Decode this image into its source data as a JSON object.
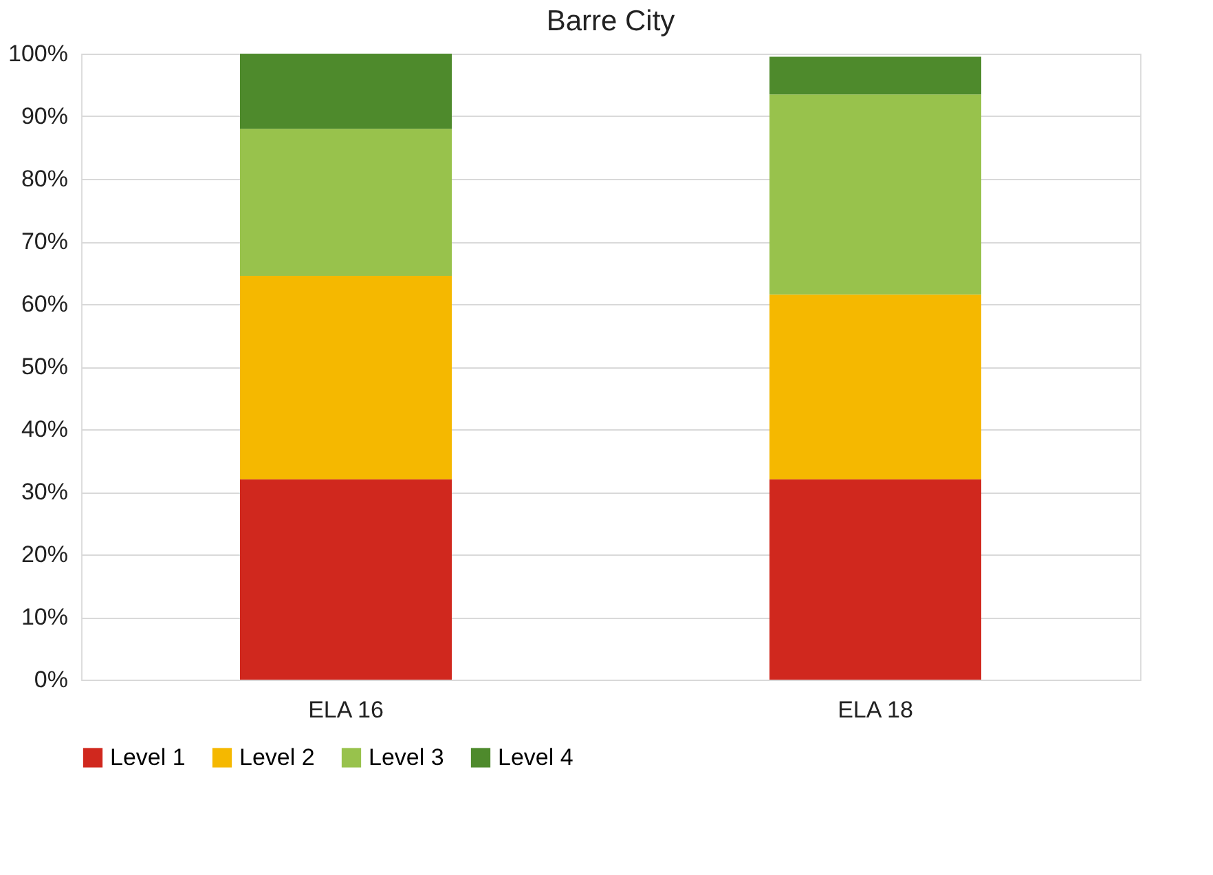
{
  "chart_data": {
    "type": "bar",
    "title": "Barre City",
    "stacked": true,
    "categories": [
      "ELA 16",
      "ELA 18"
    ],
    "series": [
      {
        "name": "Level 1",
        "color": "#d0281e",
        "values": [
          32,
          32
        ]
      },
      {
        "name": "Level 2",
        "color": "#f5b800",
        "values": [
          32.5,
          29.5
        ]
      },
      {
        "name": "Level 3",
        "color": "#98c24c",
        "values": [
          23.5,
          32
        ]
      },
      {
        "name": "Level 4",
        "color": "#4e8a2c",
        "values": [
          12,
          6
        ]
      }
    ],
    "ylim": [
      0,
      100
    ],
    "yticks": [
      {
        "value": 0,
        "label": "0%"
      },
      {
        "value": 10,
        "label": "10%"
      },
      {
        "value": 20,
        "label": "20%"
      },
      {
        "value": 30,
        "label": "30%"
      },
      {
        "value": 40,
        "label": "40%"
      },
      {
        "value": 50,
        "label": "50%"
      },
      {
        "value": 60,
        "label": "60%"
      },
      {
        "value": 70,
        "label": "70%"
      },
      {
        "value": 80,
        "label": "80%"
      },
      {
        "value": 90,
        "label": "90%"
      },
      {
        "value": 100,
        "label": "100%"
      }
    ],
    "grid": "y",
    "legend": "bottom"
  }
}
